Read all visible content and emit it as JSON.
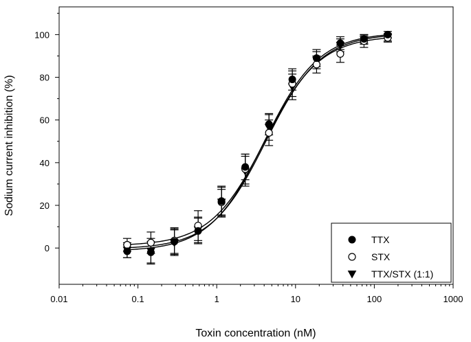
{
  "chart_data": {
    "type": "scatter",
    "xscale": "log",
    "xlim": [
      0.01,
      1000
    ],
    "ylim": [
      -17,
      113
    ],
    "xlabel": "Toxin concentration (nM)",
    "ylabel": "Sodium current inhibition (%)",
    "x_ticks": [
      0.01,
      0.1,
      1,
      10,
      100,
      1000
    ],
    "x_tick_labels": [
      "0.01",
      "0.1",
      "1",
      "10",
      "100",
      "1000"
    ],
    "y_ticks": [
      0,
      20,
      40,
      60,
      80,
      100
    ],
    "y_tick_labels": [
      "0",
      "20",
      "40",
      "60",
      "80",
      "100"
    ],
    "grid": false,
    "legend_position": "bottom-right",
    "x": [
      0.073,
      0.146,
      0.29,
      0.58,
      1.15,
      2.3,
      4.6,
      9.1,
      18.5,
      37,
      74,
      148
    ],
    "series": [
      {
        "name": "TTX",
        "marker": "filled-circle",
        "y": [
          -1.5,
          -2,
          3,
          8,
          22,
          38,
          58,
          79,
          89,
          96,
          98,
          100
        ],
        "err": [
          3,
          5,
          6,
          6,
          7,
          6,
          5,
          5,
          4,
          3,
          2,
          1.5
        ]
      },
      {
        "name": "STX",
        "marker": "open-circle",
        "y": [
          1.5,
          2.5,
          3.5,
          10.5,
          21.5,
          37,
          54,
          77,
          86,
          91,
          97,
          98.5
        ],
        "err": [
          3,
          5,
          6,
          7,
          7,
          7,
          6,
          6,
          4,
          4,
          3,
          2
        ]
      },
      {
        "name": "TTX/STX (1:1)",
        "marker": "filled-triangle-down",
        "y": [
          -1,
          -1.5,
          2.5,
          8.5,
          21.5,
          36,
          56.5,
          75.5,
          88,
          95,
          97.5,
          98.5
        ],
        "err": [
          3.5,
          6,
          6,
          6,
          6,
          7,
          6,
          6,
          4,
          3,
          2,
          1.5
        ]
      }
    ],
    "fit_curves": [
      {
        "series": "TTX",
        "bottom": -1.5,
        "top": 101,
        "ec50": 4.0,
        "hill": 1.25
      },
      {
        "series": "STX",
        "bottom": 1.0,
        "top": 99.5,
        "ec50": 4.1,
        "hill": 1.25
      },
      {
        "series": "TTX/STX (1:1)",
        "bottom": -0.5,
        "top": 100.5,
        "ec50": 4.2,
        "hill": 1.25
      }
    ]
  }
}
